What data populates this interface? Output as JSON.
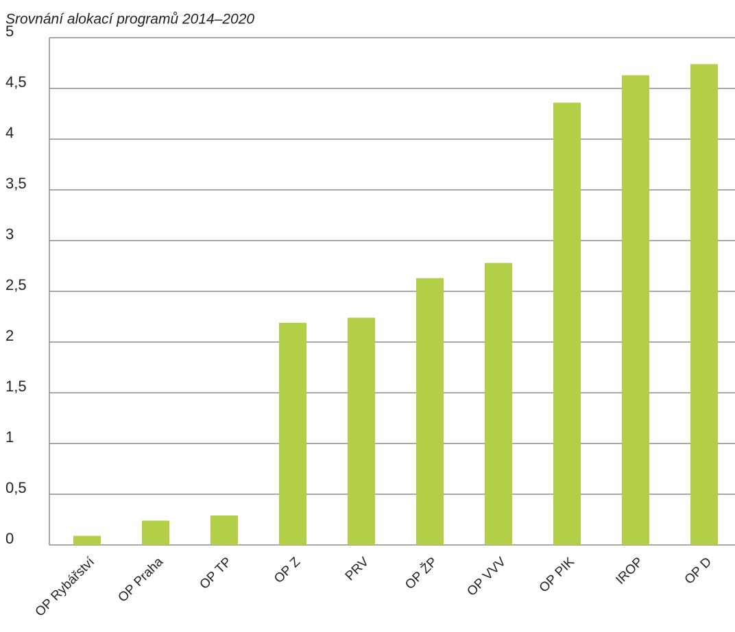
{
  "chart_data": {
    "type": "bar",
    "title": "Srovnání alokací programů 2014–2020",
    "categories": [
      "OP Rybářství",
      "OP Praha",
      "OP TP",
      "OP Z",
      "PRV",
      "OP ŽP",
      "OP VVV",
      "OP PIK",
      "IROP",
      "OP D"
    ],
    "values": [
      0.09,
      0.24,
      0.29,
      2.19,
      2.24,
      2.63,
      2.78,
      4.36,
      4.63,
      4.74
    ],
    "color": "#b2cf47",
    "ylim": [
      0,
      5
    ],
    "yticks": [
      0,
      {
        "value": 0.5,
        "label": "0,5"
      },
      1,
      {
        "value": 1.5,
        "label": "1,5"
      },
      2,
      {
        "value": 2.5,
        "label": "2,5"
      },
      3,
      {
        "value": 3.5,
        "label": "3,5"
      },
      4,
      {
        "value": 4.5,
        "label": "4,5"
      },
      5
    ],
    "grid": true
  }
}
